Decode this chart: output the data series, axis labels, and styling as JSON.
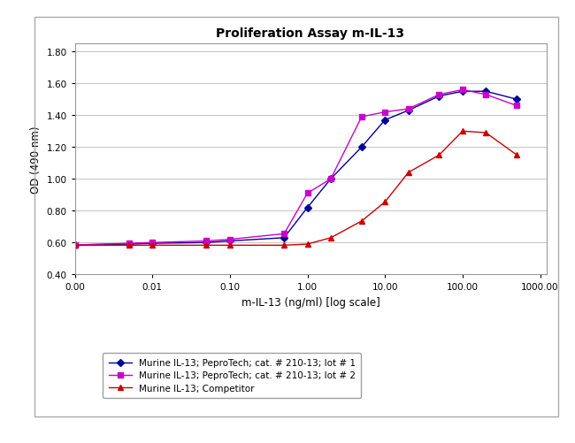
{
  "title": "Proliferation Assay m-IL-13",
  "xlabel": "m-IL-13 (ng/ml) [log scale]",
  "ylabel": "OD (490 nm)",
  "ylim": [
    0.4,
    1.85
  ],
  "yticks": [
    0.4,
    0.6,
    0.8,
    1.0,
    1.2,
    1.4,
    1.6,
    1.8
  ],
  "series1": {
    "label": "Murine IL-13; PeproTech; cat. # 210-13; lot # 1",
    "color": "#000099",
    "marker": "D",
    "x": [
      0.001,
      0.005,
      0.01,
      0.05,
      0.1,
      0.5,
      1.0,
      2.0,
      5.0,
      10.0,
      20.0,
      50.0,
      100.0,
      200.0,
      500.0
    ],
    "y": [
      0.585,
      0.59,
      0.595,
      0.6,
      0.61,
      0.63,
      0.82,
      1.0,
      1.2,
      1.37,
      1.43,
      1.52,
      1.55,
      1.55,
      1.5
    ]
  },
  "series2": {
    "label": "Murine IL-13; PeproTech; cat. # 210-13; lot # 2",
    "color": "#CC00CC",
    "marker": "s",
    "x": [
      0.001,
      0.005,
      0.01,
      0.05,
      0.1,
      0.5,
      1.0,
      2.0,
      5.0,
      10.0,
      20.0,
      50.0,
      100.0,
      200.0,
      500.0
    ],
    "y": [
      0.585,
      0.595,
      0.6,
      0.61,
      0.62,
      0.655,
      0.91,
      1.0,
      1.39,
      1.42,
      1.44,
      1.53,
      1.56,
      1.53,
      1.46
    ]
  },
  "series3": {
    "label": "Murine IL-13; Competitor",
    "color": "#CC0000",
    "marker": "^",
    "x": [
      0.001,
      0.005,
      0.01,
      0.05,
      0.1,
      0.5,
      1.0,
      2.0,
      5.0,
      10.0,
      20.0,
      50.0,
      100.0,
      200.0,
      500.0
    ],
    "y": [
      0.582,
      0.583,
      0.583,
      0.583,
      0.583,
      0.583,
      0.59,
      0.63,
      0.735,
      0.855,
      1.04,
      1.15,
      1.3,
      1.29,
      1.15
    ]
  },
  "background_color": "#ffffff",
  "plot_bg_color": "#ffffff",
  "grid_color": "#bbbbbb",
  "xtick_positions": [
    0.001,
    0.01,
    0.1,
    1.0,
    10.0,
    100.0,
    1000.0
  ],
  "xtick_labels": [
    "0.00",
    "0.01",
    "0.10",
    "1.00",
    "10.00",
    "100.00",
    "1000.00"
  ]
}
